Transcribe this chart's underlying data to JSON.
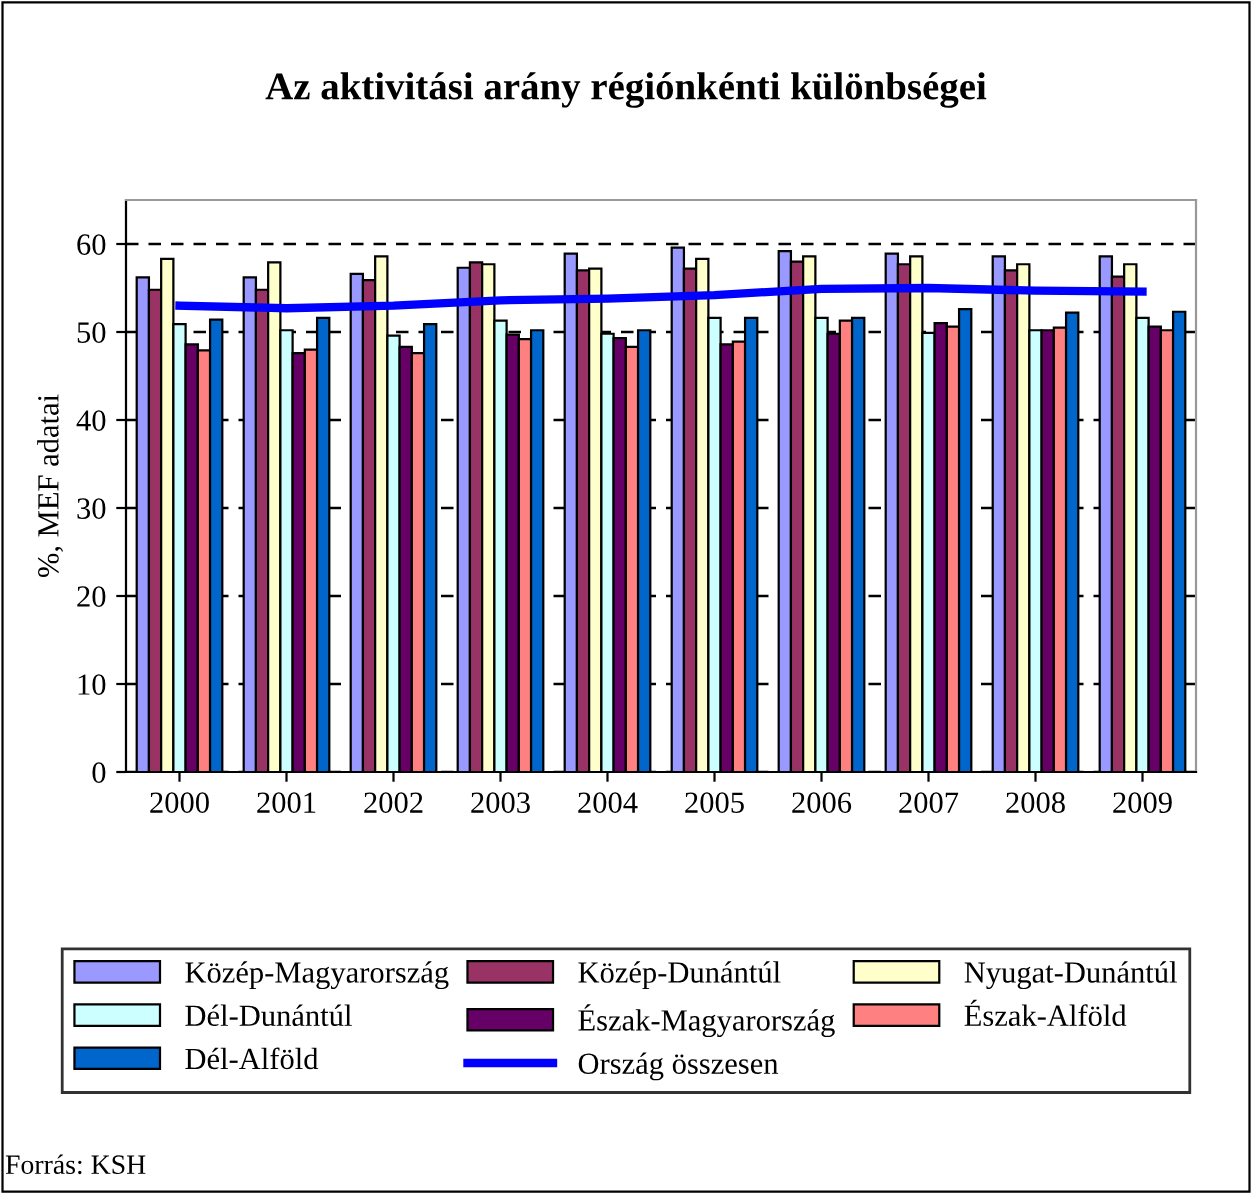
{
  "chart_data": {
    "type": "bar",
    "title": "Az aktivitási arány régiónkénti különbségei",
    "ylabel": "%, MEF adatai",
    "categories": [
      "2000",
      "2001",
      "2002",
      "2003",
      "2004",
      "2005",
      "2006",
      "2007",
      "2008",
      "2009"
    ],
    "series": [
      {
        "name": "Közép-Magyarország",
        "color": "#9999ff",
        "values": [
          56.2,
          56.2,
          56.6,
          57.3,
          58.9,
          59.6,
          59.2,
          58.9,
          58.6,
          58.6
        ]
      },
      {
        "name": "Közép-Dunántúl",
        "color": "#993366",
        "values": [
          54.8,
          54.8,
          55.9,
          57.9,
          57.0,
          57.2,
          58.0,
          57.7,
          57.0,
          56.3
        ]
      },
      {
        "name": "Nyugat-Dunántúl",
        "color": "#ffffcc",
        "values": [
          58.3,
          57.9,
          58.6,
          57.7,
          57.2,
          58.3,
          58.6,
          58.6,
          57.7,
          57.7
        ]
      },
      {
        "name": "Dél-Dunántúl",
        "color": "#ccffff",
        "values": [
          50.9,
          50.2,
          49.6,
          51.3,
          49.8,
          51.6,
          51.6,
          49.9,
          50.2,
          51.6
        ]
      },
      {
        "name": "Észak-Magyarország",
        "color": "#660066",
        "values": [
          48.6,
          47.6,
          48.3,
          49.7,
          49.3,
          48.6,
          49.8,
          51.0,
          50.2,
          50.6
        ]
      },
      {
        "name": "Észak-Alföld",
        "color": "#ff8080",
        "values": [
          47.9,
          48.0,
          47.6,
          49.2,
          48.3,
          48.9,
          51.3,
          50.6,
          50.5,
          50.2
        ]
      },
      {
        "name": "Dél-Alföld",
        "color": "#0066cc",
        "values": [
          51.4,
          51.6,
          50.9,
          50.2,
          50.2,
          51.6,
          51.6,
          52.6,
          52.2,
          52.3
        ]
      },
      {
        "name": "Ország összesen",
        "color": "#0000ff",
        "type": "line",
        "values": [
          53.0,
          52.7,
          53.0,
          53.6,
          53.8,
          54.2,
          54.9,
          55.0,
          54.7,
          54.6
        ]
      }
    ],
    "ylim": [
      0,
      65
    ],
    "yticks": [
      0,
      10,
      20,
      30,
      40,
      50,
      60
    ],
    "grid": "y",
    "legend": "bottom",
    "marker": "none",
    "annotations": [
      "Forrás: KSH"
    ]
  }
}
